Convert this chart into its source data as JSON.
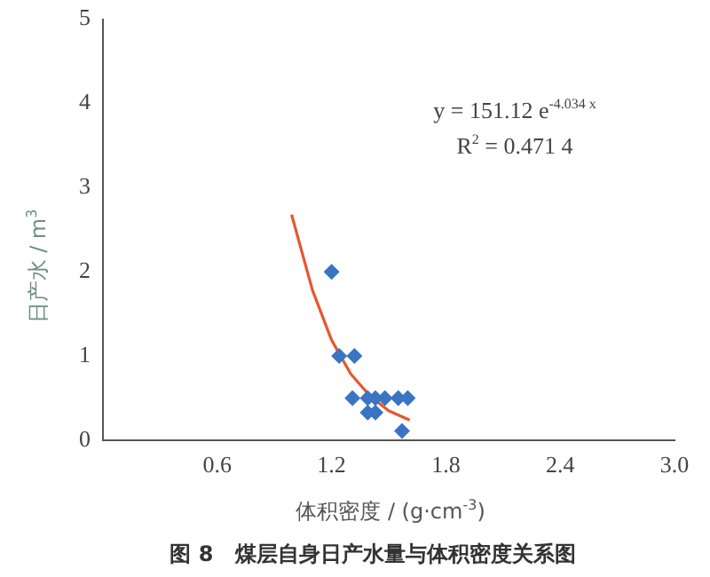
{
  "chart_data": {
    "type": "scatter",
    "title": "图 8　煤层自身日产水量与体积密度关系图",
    "xlabel": "体积密度 / (g·cm$^{-3}$)",
    "ylabel": "日产水 / m$^{3}$",
    "annotations": [
      "y = 151.12 e$^{-4.034 x}$",
      "R$^{2}$ = 0.471 4"
    ],
    "xlim": [
      0,
      3.0
    ],
    "xticks": [
      0.6,
      1.2,
      1.8,
      2.4,
      {
        "value": 3.0,
        "label": "3.0"
      }
    ],
    "ylim": [
      0,
      5
    ],
    "yticks": [
      0,
      1,
      2,
      3,
      4,
      5
    ],
    "series": [
      {
        "marker": "diamond",
        "color": "#3a74c2",
        "x": [
          1.2,
          1.24,
          1.32,
          1.31,
          1.39,
          1.43,
          1.48,
          1.55,
          1.6,
          1.39,
          1.43,
          1.57
        ],
        "values": [
          2,
          1,
          1,
          0.5,
          0.5,
          0.5,
          0.5,
          0.5,
          0.5,
          0.33,
          0.33,
          0.11
        ]
      },
      {
        "type": "line",
        "marker": "none",
        "color": "#e8562e",
        "x": [
          0.99,
          1.1,
          1.2,
          1.3,
          1.4,
          1.5,
          1.61
        ],
        "values": [
          2.68,
          1.78,
          1.19,
          0.79,
          0.53,
          0.35,
          0.24
        ]
      }
    ]
  }
}
